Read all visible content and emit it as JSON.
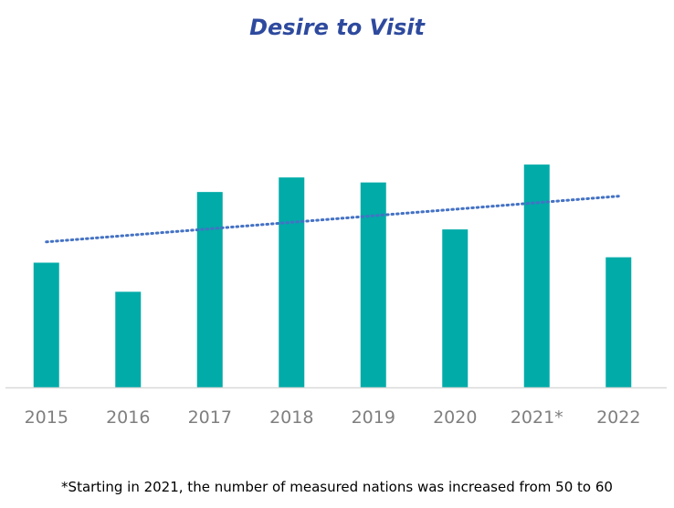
{
  "chart_data": {
    "type": "bar",
    "title": "Desire to Visit",
    "categories": [
      "2015",
      "2016",
      "2017",
      "2018",
      "2019",
      "2020",
      "2021*",
      "2022"
    ],
    "values": [
      30,
      23,
      47,
      50.5,
      49.3,
      38,
      53.6,
      31.3
    ],
    "ylim": [
      0,
      80
    ],
    "trendline": {
      "type": "linear",
      "start": 35,
      "end": 46
    },
    "xlabel": "",
    "ylabel": "",
    "footnote": "*Starting in 2021, the number of measured nations was increased from 50 to 60"
  },
  "colors": {
    "bar": "#00ABA8",
    "trend": "#4472C4",
    "title": "#2E4A9E",
    "axis": "#d9d9d9",
    "tick": "#7f7f7f"
  }
}
